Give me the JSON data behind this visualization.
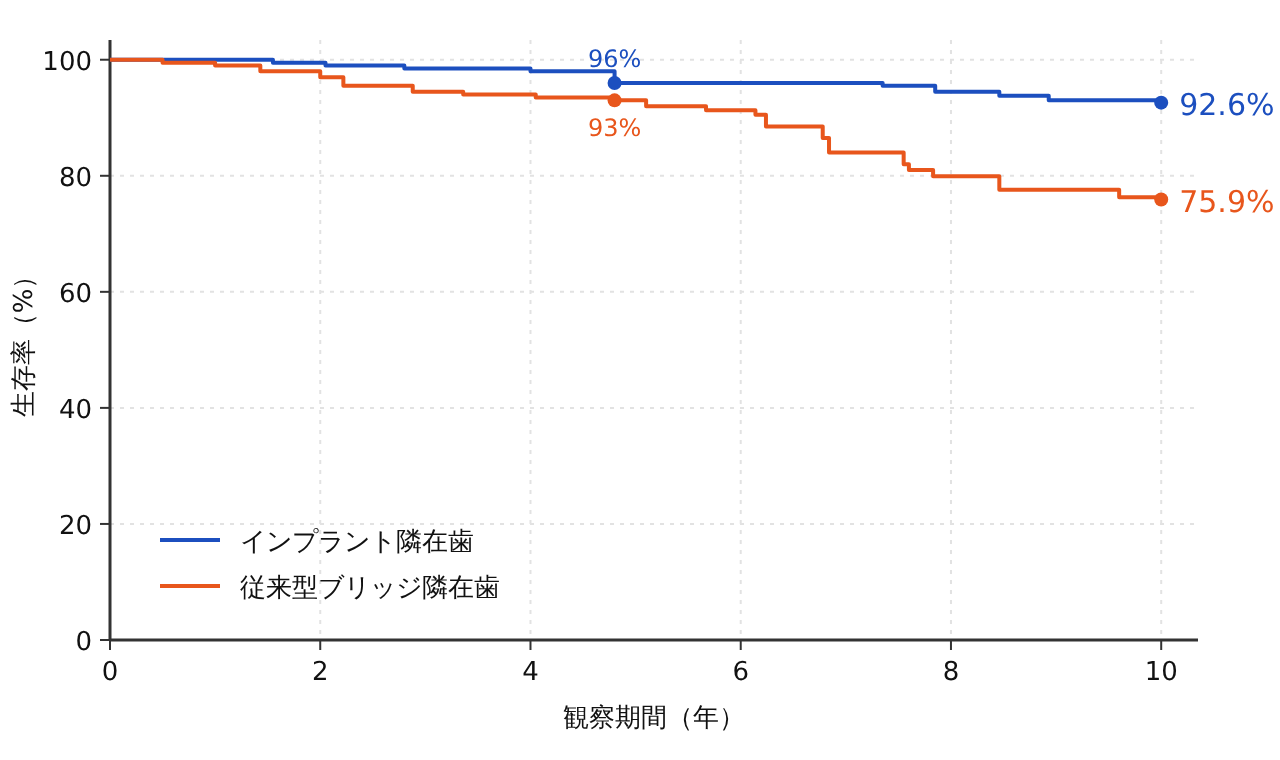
{
  "chart_data": {
    "type": "step",
    "xlabel": "観察期間（年）",
    "ylabel": "生存率（%）",
    "xlim": [
      0,
      10.35
    ],
    "ylim": [
      0,
      103.4
    ],
    "xticks": [
      0,
      2,
      4,
      6,
      8,
      10
    ],
    "yticks": [
      0,
      20,
      40,
      60,
      80,
      100
    ],
    "grid": true,
    "legend": "bottom left",
    "line_style": "solid",
    "series": [
      {
        "name": "インプラント隣在歯",
        "color": "#1c4fbf",
        "x": [
          0,
          1.55,
          2.05,
          2.8,
          4.0,
          4.8,
          7.35,
          7.85,
          8.46,
          8.93,
          10
        ],
        "values": [
          100,
          99.5,
          99,
          98.5,
          98,
          96,
          95.5,
          94.5,
          93.8,
          93,
          92.6
        ],
        "value_labels": [
          null,
          null,
          null,
          null,
          null,
          "96%",
          null,
          null,
          null,
          null,
          "92.6%"
        ]
      },
      {
        "name": "従来型ブリッジ隣在歯",
        "color": "#e8561c",
        "x": [
          0,
          0.5,
          1.0,
          1.43,
          2.0,
          2.22,
          2.88,
          3.36,
          4.05,
          4.8,
          5.1,
          5.67,
          6.14,
          6.24,
          6.78,
          6.84,
          7.55,
          7.6,
          7.83,
          8.46,
          9.6,
          10
        ],
        "values": [
          100,
          99.5,
          99,
          98,
          97,
          95.5,
          94.5,
          94,
          93.5,
          93,
          92,
          91.3,
          90.5,
          88.5,
          86.5,
          84,
          82,
          81,
          79.9,
          77.6,
          76.3,
          75.9
        ],
        "value_labels": [
          null,
          null,
          null,
          null,
          null,
          null,
          null,
          null,
          null,
          "93%",
          null,
          null,
          null,
          null,
          null,
          null,
          null,
          null,
          null,
          null,
          null,
          "75.9%"
        ]
      }
    ]
  }
}
